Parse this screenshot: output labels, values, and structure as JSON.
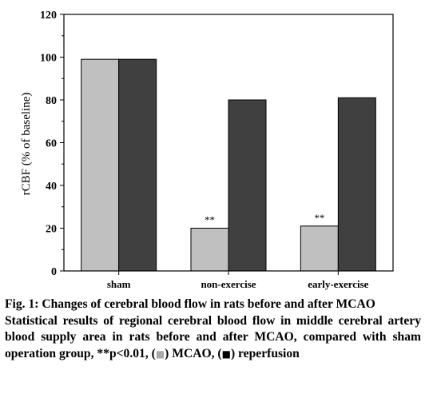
{
  "chart_data": {
    "type": "bar",
    "categories": [
      "sham",
      "non-exercise",
      "early-exercise"
    ],
    "series": [
      {
        "name": "MCAO",
        "color": "#c0c0c0",
        "values": [
          99,
          20,
          21
        ]
      },
      {
        "name": "reperfusion",
        "color": "#404040",
        "values": [
          99,
          80,
          81
        ]
      }
    ],
    "annotations": [
      "",
      "**",
      "**"
    ],
    "ylabel": "rCBF (% of baseline)",
    "xlabel": "",
    "ylim": [
      0,
      120
    ],
    "yticks": [
      0,
      20,
      40,
      60,
      80,
      100,
      120
    ],
    "grid": false,
    "legend": "none"
  },
  "caption": {
    "title": "Fig. 1: Changes of cerebral blood flow in rats before and after MCAO",
    "text_before_sym1": "Statistical results of regional cerebral blood flow in middle cerebral artery blood supply area in rats before and after MCAO, compared with sham operation group, **p<0.01, (",
    "sym1": "■",
    "text_after_sym1": ") MCAO, (",
    "sym2": "■",
    "text_after_sym2": ") reperfusion",
    "sym1_color": "#a8a8a8",
    "sym2_color": "#000000"
  }
}
